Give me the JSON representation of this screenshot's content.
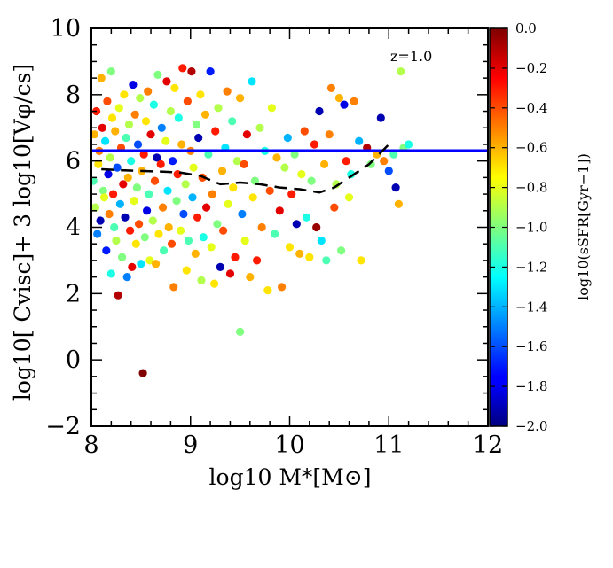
{
  "chart_data": {
    "type": "scatter",
    "title": "",
    "annotation": "z=1.0",
    "xlabel": "log10 M*[M⊙]",
    "ylabel": "log10[ Cvisc]+ 3 log10[Vφ/cs]",
    "xlim": [
      8,
      12
    ],
    "ylim": [
      -2,
      10
    ],
    "x_ticks": [
      8,
      9,
      10,
      11,
      12
    ],
    "y_ticks": [
      -2,
      0,
      2,
      4,
      6,
      8,
      10
    ],
    "x_tick_labels": [
      "8",
      "9",
      "10",
      "11",
      "12"
    ],
    "y_tick_labels": [
      "−2",
      "0",
      "2",
      "4",
      "6",
      "8",
      "10"
    ],
    "grid": false,
    "colorbar": {
      "label": "log10(sSFR[Gyr−1])",
      "range": [
        -2.0,
        0.0
      ],
      "ticks": [
        0.0,
        -0.2,
        -0.4,
        -0.6,
        -0.8,
        -1.0,
        -1.2,
        -1.4,
        -1.6,
        -1.8,
        -2.0
      ],
      "tick_labels": [
        "0.0",
        "−0.2",
        "−0.4",
        "−0.6",
        "−0.8",
        "−1.0",
        "−1.2",
        "−1.4",
        "−1.6",
        "−1.8",
        "−2.0"
      ],
      "colormap": "jet"
    },
    "reference_line": {
      "name": "threshold",
      "y": 6.32,
      "color": "#0000ff",
      "style": "solid"
    },
    "median_line": {
      "name": "running median",
      "style": "dashed",
      "color": "#000000",
      "x": [
        8.1,
        8.3,
        8.5,
        8.7,
        8.9,
        9.1,
        9.3,
        9.5,
        9.7,
        9.9,
        10.1,
        10.3,
        10.45,
        10.6,
        10.8,
        11.0
      ],
      "y": [
        5.75,
        5.72,
        5.7,
        5.68,
        5.65,
        5.55,
        5.3,
        5.35,
        5.3,
        5.2,
        5.15,
        5.05,
        5.2,
        5.5,
        5.9,
        6.5
      ]
    },
    "series": [
      {
        "name": "galaxies",
        "points": [
          [
            8.02,
            5.4,
            -1.1
          ],
          [
            8.03,
            6.8,
            -0.6
          ],
          [
            8.04,
            4.6,
            -0.9
          ],
          [
            8.05,
            7.5,
            -0.3
          ],
          [
            8.06,
            3.8,
            -1.5
          ],
          [
            8.07,
            5.9,
            -0.7
          ],
          [
            8.08,
            6.3,
            -0.5
          ],
          [
            8.09,
            4.2,
            -1.9
          ],
          [
            8.1,
            8.5,
            -0.6
          ],
          [
            8.11,
            7.0,
            -0.2
          ],
          [
            8.12,
            5.1,
            -1.0
          ],
          [
            8.13,
            4.9,
            -0.8
          ],
          [
            8.14,
            6.6,
            -1.3
          ],
          [
            8.15,
            3.3,
            -1.7
          ],
          [
            8.16,
            7.8,
            -0.4
          ],
          [
            8.17,
            5.6,
            -1.8
          ],
          [
            8.18,
            4.4,
            -0.5
          ],
          [
            8.19,
            6.1,
            -0.9
          ],
          [
            8.2,
            2.6,
            -1.2
          ],
          [
            8.2,
            8.7,
            -1.0
          ],
          [
            8.21,
            7.3,
            -0.7
          ],
          [
            8.22,
            5.0,
            -0.3
          ],
          [
            8.23,
            4.0,
            -1.1
          ],
          [
            8.24,
            6.9,
            -0.6
          ],
          [
            8.25,
            3.6,
            -0.9
          ],
          [
            8.26,
            5.8,
            -1.6
          ],
          [
            8.27,
            1.95,
            -0.1
          ],
          [
            8.28,
            7.6,
            -0.8
          ],
          [
            8.29,
            4.7,
            -1.4
          ],
          [
            8.3,
            6.4,
            -0.4
          ],
          [
            8.31,
            3.1,
            -1.0
          ],
          [
            8.32,
            5.3,
            -0.2
          ],
          [
            8.33,
            8.0,
            -0.7
          ],
          [
            8.34,
            4.3,
            -1.9
          ],
          [
            8.35,
            6.7,
            -1.1
          ],
          [
            8.36,
            2.5,
            -1.5
          ],
          [
            8.37,
            5.5,
            -0.6
          ],
          [
            8.38,
            7.1,
            -0.9
          ],
          [
            8.39,
            3.9,
            -0.3
          ],
          [
            8.4,
            6.0,
            -1.2
          ],
          [
            8.41,
            2.8,
            -0.2
          ],
          [
            8.42,
            8.3,
            -1.8
          ],
          [
            8.43,
            4.8,
            -0.8
          ],
          [
            8.44,
            7.4,
            -0.5
          ],
          [
            8.45,
            3.5,
            -0.7
          ],
          [
            8.46,
            5.2,
            -1.0
          ],
          [
            8.47,
            6.5,
            -1.6
          ],
          [
            8.48,
            4.1,
            -0.4
          ],
          [
            8.49,
            7.9,
            -0.9
          ],
          [
            8.5,
            2.9,
            -1.3
          ],
          [
            8.51,
            5.7,
            -0.6
          ],
          [
            8.52,
            -0.4,
            0.0
          ],
          [
            8.53,
            6.2,
            -0.3
          ],
          [
            8.54,
            3.7,
            -1.0
          ],
          [
            8.55,
            7.2,
            -0.7
          ],
          [
            8.56,
            4.5,
            -1.8
          ],
          [
            8.57,
            8.1,
            -0.5
          ],
          [
            8.58,
            5.0,
            -1.1
          ],
          [
            8.59,
            3.0,
            -0.8
          ],
          [
            8.6,
            6.8,
            -0.2
          ],
          [
            8.62,
            4.2,
            -0.9
          ],
          [
            8.63,
            7.7,
            -1.2
          ],
          [
            8.64,
            5.4,
            -0.4
          ],
          [
            8.65,
            2.9,
            -0.6
          ],
          [
            8.66,
            6.1,
            -1.9
          ],
          [
            8.67,
            8.6,
            -1.0
          ],
          [
            8.68,
            3.8,
            -0.7
          ],
          [
            8.7,
            5.9,
            -0.3
          ],
          [
            8.71,
            7.0,
            -1.5
          ],
          [
            8.72,
            4.6,
            -0.5
          ],
          [
            8.73,
            3.3,
            -1.1
          ],
          [
            8.75,
            6.6,
            -0.8
          ],
          [
            8.76,
            8.4,
            -0.2
          ],
          [
            8.77,
            5.1,
            -1.3
          ],
          [
            8.78,
            4.0,
            -0.6
          ],
          [
            8.8,
            7.5,
            -0.9
          ],
          [
            8.81,
            3.5,
            -0.4
          ],
          [
            8.82,
            6.0,
            -1.7
          ],
          [
            8.83,
            2.2,
            -0.5
          ],
          [
            8.84,
            8.2,
            -0.7
          ],
          [
            8.86,
            4.8,
            -1.0
          ],
          [
            8.87,
            5.6,
            -0.3
          ],
          [
            8.88,
            7.3,
            -1.2
          ],
          [
            8.9,
            3.9,
            -0.8
          ],
          [
            8.91,
            6.5,
            -0.6
          ],
          [
            8.92,
            8.8,
            -0.3
          ],
          [
            8.93,
            4.4,
            -1.6
          ],
          [
            8.95,
            5.3,
            -0.9
          ],
          [
            8.96,
            2.7,
            -0.7
          ],
          [
            8.97,
            7.8,
            -0.4
          ],
          [
            8.98,
            3.6,
            -1.1
          ],
          [
            9.0,
            6.3,
            -0.5
          ],
          [
            9.01,
            8.7,
            -0.1
          ],
          [
            9.02,
            4.9,
            -1.4
          ],
          [
            9.03,
            5.8,
            -0.8
          ],
          [
            9.05,
            3.2,
            -0.6
          ],
          [
            9.06,
            7.1,
            -1.0
          ],
          [
            9.07,
            4.3,
            -0.3
          ],
          [
            9.08,
            6.7,
            -1.9
          ],
          [
            9.1,
            8.0,
            -0.7
          ],
          [
            9.11,
            2.4,
            -0.9
          ],
          [
            9.12,
            5.5,
            -0.4
          ],
          [
            9.13,
            3.7,
            -1.2
          ],
          [
            9.15,
            7.4,
            -0.6
          ],
          [
            9.16,
            4.6,
            -0.2
          ],
          [
            9.18,
            6.2,
            -1.1
          ],
          [
            9.2,
            8.7,
            -1.7
          ],
          [
            9.21,
            3.4,
            -0.8
          ],
          [
            9.22,
            5.0,
            -0.5
          ],
          [
            9.24,
            2.3,
            -0.7
          ],
          [
            9.25,
            6.9,
            -0.3
          ],
          [
            9.27,
            4.1,
            -1.0
          ],
          [
            9.28,
            7.6,
            -0.9
          ],
          [
            9.3,
            2.8,
            -1.9
          ],
          [
            9.32,
            5.7,
            -0.6
          ],
          [
            9.33,
            3.9,
            -0.4
          ],
          [
            9.35,
            6.4,
            -1.3
          ],
          [
            9.37,
            8.1,
            -0.5
          ],
          [
            9.38,
            4.7,
            -0.8
          ],
          [
            9.4,
            2.6,
            -0.2
          ],
          [
            9.42,
            7.2,
            -1.1
          ],
          [
            9.43,
            5.2,
            -0.7
          ],
          [
            9.45,
            3.1,
            -0.3
          ],
          [
            9.47,
            6.0,
            -0.9
          ],
          [
            9.5,
            0.85,
            -1.0
          ],
          [
            9.5,
            7.9,
            -0.6
          ],
          [
            9.52,
            4.4,
            -1.5
          ],
          [
            9.54,
            5.9,
            -0.4
          ],
          [
            9.55,
            3.6,
            -0.8
          ],
          [
            9.57,
            6.8,
            -0.2
          ],
          [
            9.6,
            2.5,
            -0.6
          ],
          [
            9.62,
            8.4,
            -1.3
          ],
          [
            9.63,
            4.9,
            -0.7
          ],
          [
            9.65,
            5.4,
            -1.0
          ],
          [
            9.67,
            3.0,
            -0.3
          ],
          [
            9.7,
            7.0,
            -0.9
          ],
          [
            9.72,
            4.0,
            -0.5
          ],
          [
            9.75,
            6.3,
            -1.2
          ],
          [
            9.78,
            2.1,
            -0.7
          ],
          [
            9.8,
            5.1,
            -0.4
          ],
          [
            9.82,
            7.6,
            -0.8
          ],
          [
            9.85,
            3.8,
            -1.1
          ],
          [
            9.87,
            6.1,
            -0.6
          ],
          [
            9.9,
            4.5,
            -0.2
          ],
          [
            9.92,
            2.2,
            -0.5
          ],
          [
            9.95,
            5.8,
            -0.9
          ],
          [
            9.98,
            6.7,
            -1.4
          ],
          [
            10.0,
            3.4,
            -0.7
          ],
          [
            10.02,
            5.0,
            -0.3
          ],
          [
            10.05,
            6.2,
            -1.0
          ],
          [
            10.07,
            4.1,
            -1.9
          ],
          [
            10.1,
            3.2,
            -0.6
          ],
          [
            10.12,
            5.6,
            -0.8
          ],
          [
            10.15,
            6.9,
            -0.4
          ],
          [
            10.17,
            4.3,
            -1.2
          ],
          [
            10.2,
            3.1,
            -0.7
          ],
          [
            10.22,
            5.4,
            -1.0
          ],
          [
            10.25,
            6.5,
            -0.3
          ],
          [
            10.27,
            4.0,
            -0.05
          ],
          [
            10.3,
            7.5,
            -1.9
          ],
          [
            10.32,
            3.6,
            -1.3
          ],
          [
            10.35,
            5.9,
            -0.6
          ],
          [
            10.37,
            3.0,
            -1.1
          ],
          [
            10.4,
            6.8,
            -0.5
          ],
          [
            10.42,
            8.2,
            -0.5
          ],
          [
            10.45,
            4.6,
            -0.4
          ],
          [
            10.47,
            5.3,
            -0.9
          ],
          [
            10.5,
            7.9,
            -0.6
          ],
          [
            10.52,
            3.3,
            -1.0
          ],
          [
            10.55,
            7.7,
            -1.8
          ],
          [
            10.57,
            6.0,
            -0.3
          ],
          [
            10.6,
            4.9,
            -0.8
          ],
          [
            10.62,
            5.6,
            -1.2
          ],
          [
            10.65,
            7.8,
            -0.5
          ],
          [
            10.7,
            6.6,
            -1.4
          ],
          [
            10.72,
            3.0,
            -0.7
          ],
          [
            10.78,
            6.4,
            -0.1
          ],
          [
            10.82,
            5.9,
            -1.0
          ],
          [
            10.88,
            6.2,
            -0.6
          ],
          [
            10.92,
            7.3,
            -1.9
          ],
          [
            10.95,
            6.0,
            -0.5
          ],
          [
            11.0,
            5.7,
            -1.6
          ],
          [
            11.05,
            6.2,
            -1.1
          ],
          [
            11.07,
            5.2,
            -1.9
          ],
          [
            11.1,
            4.7,
            -0.6
          ],
          [
            11.12,
            8.7,
            -0.9
          ],
          [
            11.15,
            6.4,
            -1.0
          ],
          [
            11.2,
            6.5,
            -1.2
          ]
        ]
      }
    ]
  }
}
